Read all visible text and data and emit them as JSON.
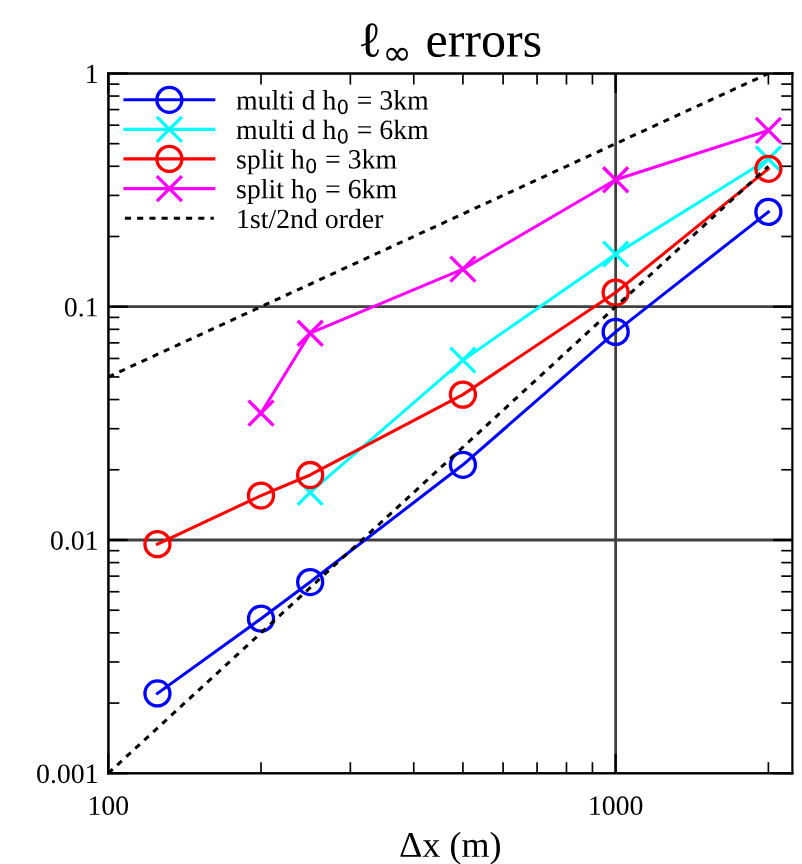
{
  "chart_data": {
    "type": "line",
    "title": "ℓ$_{∞}$ errors",
    "xlabel": "Δx (m)",
    "log": "xy",
    "xlim": [
      100,
      2230
    ],
    "ylim": [
      0.001,
      1
    ],
    "xticks": [
      100,
      1000
    ],
    "yticks": [
      0.001,
      0.01,
      0.1,
      1
    ],
    "grid": true,
    "legend": "top left",
    "series": [
      {
        "name": "multi d h$_{0}$ = 3km",
        "color": "#0000ff",
        "marker": "circle",
        "x": [
          125,
          200,
          250,
          500,
          1000,
          2000
        ],
        "values": [
          0.0022,
          0.0046,
          0.0066,
          0.021,
          0.078,
          0.255
        ]
      },
      {
        "name": "multi d h$_{0}$ = 6km",
        "color": "#00ffff",
        "marker": "cross",
        "x": [
          250,
          500,
          1000,
          2000
        ],
        "values": [
          0.016,
          0.059,
          0.168,
          0.43
        ]
      },
      {
        "name": "split h$_{0}$ = 3km",
        "color": "#ff0000",
        "marker": "circle",
        "x": [
          125,
          200,
          250,
          500,
          1000,
          2000
        ],
        "values": [
          0.0096,
          0.0155,
          0.019,
          0.042,
          0.115,
          0.39
        ]
      },
      {
        "name": "split h$_{0}$ = 6km",
        "color": "#ff00ff",
        "marker": "cross",
        "x": [
          200,
          250,
          500,
          1000,
          2000
        ],
        "values": [
          0.035,
          0.077,
          0.145,
          0.35,
          0.57
        ]
      },
      {
        "name": "1st/2nd order",
        "color": "#000000",
        "marker": "none",
        "line_style": "dotted",
        "x": [
          100,
          2000
        ],
        "values": [
          0.05,
          1
        ]
      },
      {
        "color": "#000000",
        "marker": "none",
        "line_style": "dotted",
        "x": [
          100,
          2000
        ],
        "values": [
          0.001,
          0.4
        ]
      }
    ]
  }
}
